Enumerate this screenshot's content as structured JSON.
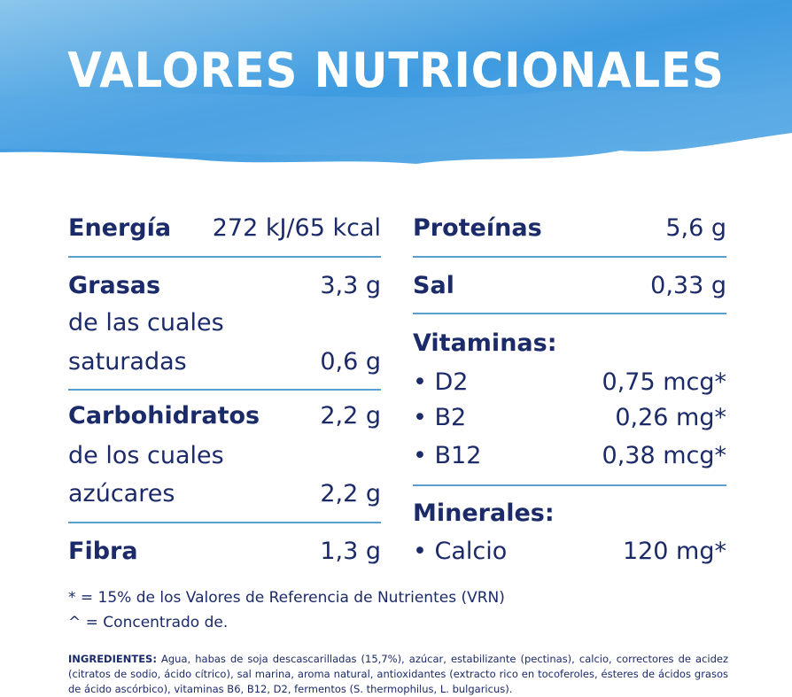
{
  "header": {
    "title": "VALORES NUTRICIONALES"
  },
  "left": [
    {
      "name": "Energía",
      "value": "272 kJ/65 kcal"
    },
    {
      "name": "Grasas",
      "value": "3,3 g",
      "sub1": "de las cuales",
      "sub2": "saturadas",
      "sub_value": "0,6 g"
    },
    {
      "name": "Carbohidratos",
      "value": "2,2 g",
      "sub1": "de los cuales",
      "sub2": "azúcares",
      "sub_value": "2,2 g"
    },
    {
      "name": "Fibra",
      "value": "1,3 g"
    }
  ],
  "right": {
    "proteins": {
      "name": "Proteínas",
      "value": "5,6 g"
    },
    "salt": {
      "name": "Sal",
      "value": "0,33 g"
    },
    "vitamins": {
      "title": "Vitaminas:",
      "items": [
        {
          "name": "• D2",
          "value": "0,75 mcg*"
        },
        {
          "name": "• B2",
          "value": "0,26 mg*"
        },
        {
          "name": "• B12",
          "value": "0,38 mcg*"
        }
      ]
    },
    "minerals": {
      "title": "Minerales:",
      "items": [
        {
          "name": "• Calcio",
          "value": "120 mg*"
        }
      ]
    }
  },
  "footnotes": [
    "* = 15% de los Valores de Referencia de Nutrientes (VRN)",
    "^ = Concentrado de."
  ],
  "ingredients": {
    "label": "INGREDIENTES:",
    "text": "Agua, habas de soja descascarilladas (15,7%), azúcar, estabilizante (pectinas), calcio, correctores de acidez (citratos de sodio, ácido cítrico), sal marina, aroma natural, antioxidantes (extracto rico en tocoferoles, ésteres de ácidos grasos de ácido ascórbico), vitaminas B6, B12, D2, fermentos (S. thermophilus, L. bulgaricus)."
  }
}
